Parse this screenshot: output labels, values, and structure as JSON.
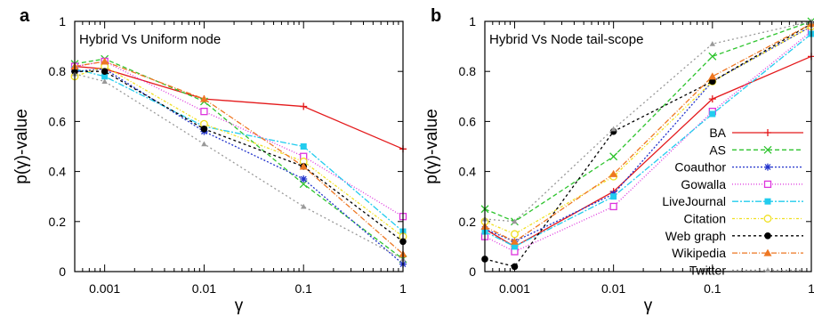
{
  "chart_data": [
    {
      "panel_label": "a",
      "type": "line",
      "title": "Hybrid Vs Uniform node",
      "xlabel": "γ",
      "ylabel": "p(γ)-value",
      "x_scale": "log",
      "xlim": [
        0.0005,
        1
      ],
      "ylim": [
        0,
        1
      ],
      "x_ticks": [
        0.001,
        0.01,
        0.1,
        1
      ],
      "x_tick_labels": [
        "0.001",
        "0.01",
        "0.1",
        "1"
      ],
      "y_ticks": [
        0,
        0.2,
        0.4,
        0.6,
        0.8,
        1
      ],
      "y_tick_labels": [
        "0",
        "0.2",
        "0.4",
        "0.6",
        "0.8",
        "1"
      ],
      "grid": false,
      "legend": false,
      "x": [
        0.0005,
        0.001,
        0.01,
        0.1,
        1
      ],
      "series": [
        {
          "name": "BA",
          "color": "#e41a1c",
          "dash": "solid",
          "marker": "plus",
          "values": [
            0.82,
            0.81,
            0.69,
            0.66,
            0.49
          ]
        },
        {
          "name": "AS",
          "color": "#2ec42e",
          "dash": "5,3",
          "marker": "x",
          "values": [
            0.83,
            0.85,
            0.68,
            0.35,
            0.05
          ]
        },
        {
          "name": "Coauthor",
          "color": "#2233cc",
          "dash": "2,2",
          "marker": "star",
          "values": [
            0.8,
            0.81,
            0.56,
            0.37,
            0.03
          ]
        },
        {
          "name": "Gowalla",
          "color": "#dd33dd",
          "dash": "1,2",
          "marker": "square-open",
          "values": [
            0.82,
            0.84,
            0.64,
            0.46,
            0.22
          ]
        },
        {
          "name": "LiveJournal",
          "color": "#22ccee",
          "dash": "7,2,2,2",
          "marker": "square-filled",
          "values": [
            0.81,
            0.78,
            0.58,
            0.5,
            0.16
          ]
        },
        {
          "name": "Citation",
          "color": "#f0e020",
          "dash": "3,2,1,2",
          "marker": "circle-open",
          "values": [
            0.78,
            0.82,
            0.59,
            0.44,
            0.14
          ]
        },
        {
          "name": "Web graph",
          "color": "#000000",
          "dash": "3,3",
          "marker": "circle-filled",
          "values": [
            0.8,
            0.8,
            0.57,
            0.42,
            0.12
          ]
        },
        {
          "name": "Wikipedia",
          "color": "#ee7722",
          "dash": "6,2,1,2",
          "marker": "triangle",
          "values": [
            0.82,
            0.84,
            0.69,
            0.42,
            0.07
          ]
        },
        {
          "name": "Twitter",
          "color": "#999999",
          "dash": "2,3",
          "marker": "triangle-small",
          "values": [
            0.79,
            0.76,
            0.51,
            0.26,
            0.05
          ]
        }
      ]
    },
    {
      "panel_label": "b",
      "type": "line",
      "title": "Hybrid Vs Node tail-scope",
      "xlabel": "γ",
      "ylabel": "p(γ)-value",
      "x_scale": "log",
      "xlim": [
        0.0005,
        1
      ],
      "ylim": [
        0,
        1
      ],
      "x_ticks": [
        0.001,
        0.01,
        0.1,
        1
      ],
      "x_tick_labels": [
        "0.001",
        "0.01",
        "0.1",
        "1"
      ],
      "y_ticks": [
        0,
        0.2,
        0.4,
        0.6,
        0.8,
        1
      ],
      "y_tick_labels": [
        "0",
        "0.2",
        "0.4",
        "0.6",
        "0.8",
        "1"
      ],
      "grid": false,
      "legend": true,
      "legend_position": "bottom-right",
      "x": [
        0.0005,
        0.001,
        0.01,
        0.1,
        1
      ],
      "series": [
        {
          "name": "BA",
          "color": "#e41a1c",
          "dash": "solid",
          "marker": "plus",
          "values": [
            0.17,
            0.1,
            0.32,
            0.69,
            0.86
          ]
        },
        {
          "name": "AS",
          "color": "#2ec42e",
          "dash": "5,3",
          "marker": "x",
          "values": [
            0.25,
            0.2,
            0.46,
            0.86,
            1.0
          ]
        },
        {
          "name": "Coauthor",
          "color": "#2233cc",
          "dash": "2,2",
          "marker": "star",
          "values": [
            0.17,
            0.12,
            0.31,
            0.76,
            0.98
          ]
        },
        {
          "name": "Gowalla",
          "color": "#dd33dd",
          "dash": "1,2",
          "marker": "square-open",
          "values": [
            0.14,
            0.08,
            0.26,
            0.64,
            0.96
          ]
        },
        {
          "name": "LiveJournal",
          "color": "#22ccee",
          "dash": "7,2,2,2",
          "marker": "square-filled",
          "values": [
            0.16,
            0.1,
            0.3,
            0.63,
            0.95
          ]
        },
        {
          "name": "Citation",
          "color": "#f0e020",
          "dash": "3,2,1,2",
          "marker": "circle-open",
          "values": [
            0.2,
            0.15,
            0.38,
            0.76,
            0.98
          ]
        },
        {
          "name": "Web graph",
          "color": "#000000",
          "dash": "3,3",
          "marker": "circle-filled",
          "values": [
            0.05,
            0.02,
            0.56,
            0.76,
            0.99
          ]
        },
        {
          "name": "Wikipedia",
          "color": "#ee7722",
          "dash": "6,2,1,2",
          "marker": "triangle",
          "values": [
            0.18,
            0.12,
            0.39,
            0.78,
            0.99
          ]
        },
        {
          "name": "Twitter",
          "color": "#999999",
          "dash": "2,3",
          "marker": "triangle-small",
          "values": [
            0.21,
            0.2,
            0.57,
            0.91,
            1.0
          ]
        }
      ]
    }
  ]
}
